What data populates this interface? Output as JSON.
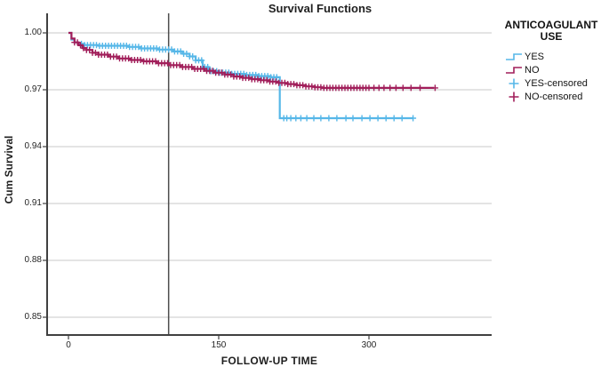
{
  "title": "Survival Functions",
  "axes": {
    "y_title": "Cum Survival",
    "x_title": "FOLLOW-UP TIME",
    "y_ticks": [
      "1.00",
      "0.97",
      "0.94",
      "0.91",
      "0.88",
      "0.85"
    ],
    "x_ticks": [
      "0",
      "150",
      "300"
    ]
  },
  "legend": {
    "title_line1": "ANTICOAGULANT",
    "title_line2": "USE",
    "items": [
      {
        "label": "YES",
        "type": "step",
        "color": "#56b7e8"
      },
      {
        "label": "NO",
        "type": "step",
        "color": "#a11e5a"
      },
      {
        "label": "YES-censored",
        "type": "plus",
        "color": "#56b7e8"
      },
      {
        "label": "NO-censored",
        "type": "plus",
        "color": "#a11e5a"
      }
    ]
  },
  "colors": {
    "yes_blue": "#56b7e8",
    "no_maroon": "#a11e5a",
    "gridline": "#c8c8c8",
    "axis": "#404040",
    "reference_line": "#4d4d4d",
    "background": "#ffffff",
    "text": "#1a1a1a"
  },
  "chart_data": {
    "type": "line",
    "subtype": "kaplan-meier-step",
    "title": "Survival Functions",
    "xlabel": "FOLLOW-UP TIME",
    "ylabel": "Cum Survival",
    "xlim": [
      -21,
      422
    ],
    "ylim": [
      0.84,
      1.01
    ],
    "x_tick_values": [
      0,
      150,
      300
    ],
    "y_tick_values": [
      1.0,
      0.97,
      0.94,
      0.91,
      0.88,
      0.85
    ],
    "grid": "horizontal",
    "legend_position": "right",
    "reference_line_x": 100,
    "series": [
      {
        "name": "YES",
        "color": "#56b7e8",
        "steps": [
          [
            0,
            1.0
          ],
          [
            3,
            0.9965
          ],
          [
            6,
            0.995
          ],
          [
            10,
            0.9942
          ],
          [
            16,
            0.9936
          ],
          [
            30,
            0.9932
          ],
          [
            60,
            0.9926
          ],
          [
            72,
            0.9918
          ],
          [
            90,
            0.9912
          ],
          [
            105,
            0.9902
          ],
          [
            114,
            0.989
          ],
          [
            121,
            0.9876
          ],
          [
            127,
            0.9855
          ],
          [
            134,
            0.982
          ],
          [
            140,
            0.9798
          ],
          [
            150,
            0.979
          ],
          [
            163,
            0.9784
          ],
          [
            176,
            0.9778
          ],
          [
            190,
            0.9772
          ],
          [
            202,
            0.9766
          ],
          [
            211,
            0.976
          ],
          [
            211,
            0.955
          ],
          [
            344,
            0.955
          ]
        ],
        "censored": [
          13,
          16,
          19,
          22,
          25,
          28,
          31,
          34,
          37,
          40,
          43,
          46,
          49,
          52,
          55,
          58,
          61,
          64,
          67,
          70,
          73,
          76,
          79,
          82,
          85,
          88,
          91,
          94,
          97,
          100,
          103,
          106,
          109,
          112,
          115,
          118,
          121,
          124,
          127,
          130,
          133,
          136,
          139,
          142,
          145,
          148,
          151,
          154,
          157,
          160,
          163,
          166,
          169,
          172,
          175,
          178,
          181,
          184,
          187,
          190,
          193,
          196,
          199,
          202,
          205,
          208,
          215,
          218,
          222,
          227,
          232,
          238,
          245,
          252,
          260,
          268,
          277,
          284,
          293,
          301,
          309,
          317,
          325,
          333,
          344
        ]
      },
      {
        "name": "NO",
        "color": "#a11e5a",
        "steps": [
          [
            0,
            1.0
          ],
          [
            3,
            0.997
          ],
          [
            6,
            0.995
          ],
          [
            10,
            0.9935
          ],
          [
            14,
            0.992
          ],
          [
            18,
            0.991
          ],
          [
            24,
            0.9895
          ],
          [
            30,
            0.9885
          ],
          [
            40,
            0.9875
          ],
          [
            50,
            0.9865
          ],
          [
            62,
            0.9857
          ],
          [
            75,
            0.985
          ],
          [
            88,
            0.984
          ],
          [
            100,
            0.983
          ],
          [
            112,
            0.982
          ],
          [
            124,
            0.981
          ],
          [
            136,
            0.98
          ],
          [
            146,
            0.979
          ],
          [
            156,
            0.978
          ],
          [
            165,
            0.977
          ],
          [
            174,
            0.9763
          ],
          [
            183,
            0.9756
          ],
          [
            192,
            0.975
          ],
          [
            201,
            0.9743
          ],
          [
            210,
            0.9736
          ],
          [
            219,
            0.973
          ],
          [
            228,
            0.9724
          ],
          [
            237,
            0.9718
          ],
          [
            246,
            0.9713
          ],
          [
            253,
            0.971
          ],
          [
            365,
            0.971
          ]
        ],
        "censored": [
          6,
          9,
          12,
          15,
          18,
          21,
          24,
          27,
          30,
          33,
          36,
          39,
          42,
          45,
          48,
          51,
          54,
          57,
          60,
          63,
          66,
          69,
          72,
          75,
          78,
          81,
          84,
          87,
          90,
          93,
          96,
          99,
          102,
          105,
          108,
          111,
          114,
          117,
          120,
          123,
          126,
          129,
          132,
          135,
          138,
          141,
          144,
          147,
          150,
          153,
          156,
          159,
          162,
          165,
          168,
          171,
          174,
          177,
          180,
          183,
          186,
          189,
          192,
          195,
          198,
          201,
          204,
          207,
          210,
          213,
          216,
          219,
          222,
          225,
          228,
          231,
          234,
          237,
          240,
          243,
          246,
          249,
          252,
          255,
          258,
          261,
          264,
          267,
          270,
          273,
          276,
          279,
          282,
          285,
          288,
          291,
          294,
          297,
          300,
          305,
          310,
          315,
          321,
          327,
          334,
          342,
          351,
          366
        ]
      }
    ]
  }
}
